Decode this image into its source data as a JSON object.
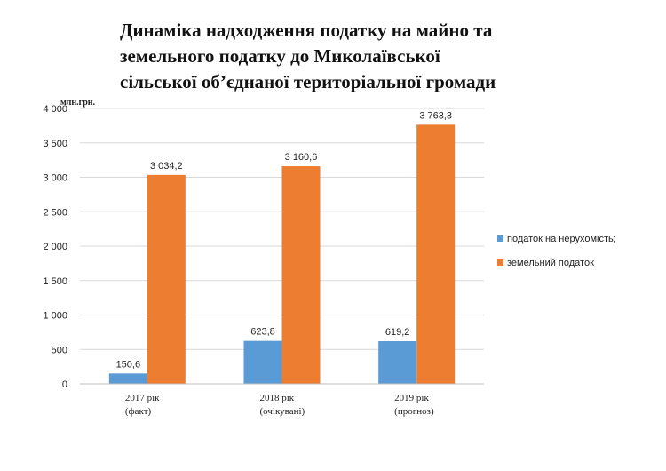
{
  "chart_data": {
    "type": "bar",
    "title_lines": [
      "Динаміка надходження податку на майно та",
      "земельного податку до Миколаївської",
      "сільської об’єднаної територіальної громади"
    ],
    "ylabel": "млн.грн.",
    "ylim": [
      0,
      4000
    ],
    "yticks": [
      0,
      500,
      1000,
      1500,
      2000,
      2500,
      3000,
      3500,
      4000
    ],
    "ytick_labels": [
      "0",
      "500",
      "1 000",
      "1 500",
      "2 000",
      "2 500",
      "3 000",
      "3 500",
      "4 000"
    ],
    "categories": [
      [
        "2017 рік",
        "(факт)"
      ],
      [
        "2018 рік",
        "(очікувані)"
      ],
      [
        "2019 рік",
        "(прогноз)"
      ]
    ],
    "series": [
      {
        "name": "податок на нерухомість;",
        "color": "#5B9BD5",
        "values": [
          150.6,
          623.8,
          619.2
        ],
        "labels": [
          "150,6",
          "623,8",
          "619,2"
        ]
      },
      {
        "name": "земельний податок",
        "color": "#ED7D31",
        "values": [
          3034.2,
          3160.6,
          3763.3
        ],
        "labels": [
          "3 034,2",
          "3 160,6",
          "3 763,3"
        ]
      }
    ],
    "grid": true,
    "legend": "right"
  }
}
